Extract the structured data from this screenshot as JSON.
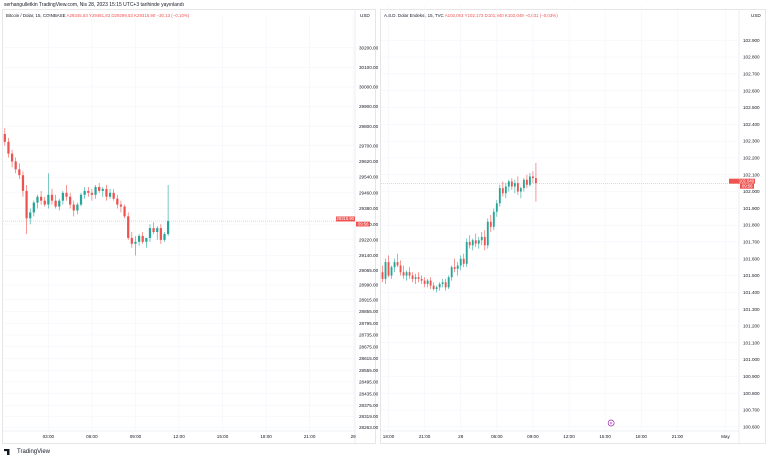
{
  "header": {
    "publisher_line": "serhangulletkin TradingView.com, Nis 28, 2023 15:15 UTC+3 tarihinde yayınlandı"
  },
  "footer": {
    "brand": "TradingView"
  },
  "colors": {
    "up": "#26a69a",
    "down": "#ef5350",
    "grid": "#f0f3fa",
    "axis_text": "#131722"
  },
  "chart_data": [
    {
      "type": "candlestick",
      "panel": "left",
      "legend": {
        "symbol": "Bitcoin / Dolar, 15, COINBASE",
        "ohlc": "A29345,63  Y29481,83  D29299,53  K29315,90  −30,13 (−0,10%)"
      },
      "currency": "USD",
      "ylim": [
        28245,
        30260
      ],
      "yticks": [
        30200,
        30100,
        30000,
        29900,
        29800,
        29700,
        29620,
        29540,
        29460,
        29380,
        29300,
        29220,
        29140,
        29065,
        28990,
        28915,
        28855,
        28795,
        28735,
        28675,
        28615,
        28555,
        28495,
        28435,
        28375,
        28319,
        28263
      ],
      "ytick_labels": [
        "30200.00",
        "30100.00",
        "30000.00",
        "29900.00",
        "29800.00",
        "29700.00",
        "29620.00",
        "29540.00",
        "29460.00",
        "29380.00",
        "29300.00",
        "29220.00",
        "29140.00",
        "29065.00",
        "28990.00",
        "28915.00",
        "28855.00",
        "28795.00",
        "28735.00",
        "28675.00",
        "28615.00",
        "28555.00",
        "28495.00",
        "28435.00",
        "28375.00",
        "28319.00",
        "28263.00"
      ],
      "xtick_labels": [
        "03:00",
        "06:00",
        "09:00",
        "12:00",
        "15:00",
        "18:00",
        "21:00",
        "29"
      ],
      "xtick_pos": [
        12,
        24,
        36,
        48,
        60,
        72,
        84,
        96
      ],
      "x_count": 97,
      "last_price": {
        "value": 29315.9,
        "label": "29315.90",
        "countdown": "09:56"
      },
      "candles": [
        [
          29760,
          29790,
          29700,
          29720
        ],
        [
          29720,
          29740,
          29640,
          29660
        ],
        [
          29660,
          29680,
          29590,
          29620
        ],
        [
          29620,
          29640,
          29560,
          29580
        ],
        [
          29580,
          29610,
          29530,
          29550
        ],
        [
          29550,
          29570,
          29440,
          29470
        ],
        [
          29470,
          29500,
          29250,
          29330
        ],
        [
          29330,
          29380,
          29300,
          29360
        ],
        [
          29360,
          29420,
          29340,
          29410
        ],
        [
          29410,
          29450,
          29380,
          29440
        ],
        [
          29440,
          29470,
          29400,
          29420
        ],
        [
          29420,
          29440,
          29390,
          29400
        ],
        [
          29400,
          29560,
          29380,
          29450
        ],
        [
          29450,
          29480,
          29400,
          29420
        ],
        [
          29420,
          29450,
          29380,
          29390
        ],
        [
          29390,
          29430,
          29370,
          29420
        ],
        [
          29420,
          29470,
          29400,
          29460
        ],
        [
          29460,
          29500,
          29420,
          29440
        ],
        [
          29440,
          29460,
          29380,
          29400
        ],
        [
          29400,
          29420,
          29340,
          29370
        ],
        [
          29370,
          29410,
          29350,
          29400
        ],
        [
          29400,
          29460,
          29390,
          29450
        ],
        [
          29450,
          29490,
          29430,
          29470
        ],
        [
          29470,
          29490,
          29440,
          29460
        ],
        [
          29460,
          29480,
          29420,
          29450
        ],
        [
          29450,
          29500,
          29430,
          29490
        ],
        [
          29490,
          29510,
          29460,
          29470
        ],
        [
          29470,
          29490,
          29440,
          29480
        ],
        [
          29480,
          29500,
          29420,
          29440
        ],
        [
          29440,
          29480,
          29430,
          29460
        ],
        [
          29460,
          29480,
          29420,
          29430
        ],
        [
          29430,
          29450,
          29380,
          29400
        ],
        [
          29400,
          29420,
          29360,
          29390
        ],
        [
          29390,
          29400,
          29330,
          29340
        ],
        [
          29340,
          29360,
          29220,
          29230
        ],
        [
          29230,
          29260,
          29180,
          29200
        ],
        [
          29200,
          29240,
          29140,
          29210
        ],
        [
          29210,
          29250,
          29190,
          29240
        ],
        [
          29240,
          29260,
          29200,
          29210
        ],
        [
          29210,
          29230,
          29180,
          29230
        ],
        [
          29230,
          29300,
          29210,
          29280
        ],
        [
          29280,
          29310,
          29250,
          29260
        ],
        [
          29260,
          29290,
          29220,
          29280
        ],
        [
          29280,
          29300,
          29200,
          29220
        ],
        [
          29220,
          29260,
          29210,
          29250
        ],
        [
          29250,
          29500,
          29240,
          29316
        ]
      ]
    },
    {
      "type": "candlestick",
      "panel": "right",
      "legend": {
        "symbol": "A.B.D. Dolar Endeksi, 15, TVC",
        "ohlc": "A102,083  Y102,173  D101,940  K102,049  −0,031 (−0,03%)"
      },
      "currency": "USD",
      "ylim": [
        100.575,
        102.985
      ],
      "yticks": [
        102.9,
        102.8,
        102.7,
        102.6,
        102.5,
        102.4,
        102.3,
        102.2,
        102.1,
        102.0,
        101.9,
        101.8,
        101.7,
        101.6,
        101.5,
        101.4,
        101.3,
        101.2,
        101.1,
        101.0,
        100.9,
        100.8,
        100.7,
        100.6
      ],
      "ytick_labels": [
        "102.900",
        "102.800",
        "102.700",
        "102.600",
        "102.500",
        "102.400",
        "102.300",
        "102.200",
        "102.100",
        "102.000",
        "101.900",
        "101.800",
        "101.700",
        "101.600",
        "101.500",
        "101.400",
        "101.300",
        "101.200",
        "101.100",
        "101.000",
        "100.900",
        "100.800",
        "100.700",
        "100.600"
      ],
      "xtick_labels": [
        "18:00",
        "21:00",
        "28",
        "06:00",
        "09:00",
        "12:00",
        "15:00",
        "18:00",
        "21:00",
        "May"
      ],
      "xtick_pos": [
        2,
        14,
        26,
        38,
        50,
        62,
        74,
        86,
        98,
        114
      ],
      "x_count": 119,
      "last_price": {
        "value": 102.049,
        "label": "102.049",
        "countdown": "09:56"
      },
      "event_marker": {
        "label": "R",
        "x": 76
      },
      "candles": [
        [
          101.52,
          101.56,
          101.46,
          101.48
        ],
        [
          101.48,
          101.6,
          101.45,
          101.58
        ],
        [
          101.58,
          101.62,
          101.49,
          101.5
        ],
        [
          101.5,
          101.56,
          101.48,
          101.55
        ],
        [
          101.55,
          101.6,
          101.52,
          101.58
        ],
        [
          101.58,
          101.63,
          101.55,
          101.56
        ],
        [
          101.56,
          101.59,
          101.5,
          101.52
        ],
        [
          101.52,
          101.56,
          101.48,
          101.5
        ],
        [
          101.5,
          101.53,
          101.47,
          101.52
        ],
        [
          101.52,
          101.55,
          101.48,
          101.5
        ],
        [
          101.5,
          101.52,
          101.46,
          101.48
        ],
        [
          101.48,
          101.51,
          101.45,
          101.49
        ],
        [
          101.49,
          101.52,
          101.46,
          101.48
        ],
        [
          101.48,
          101.5,
          101.45,
          101.47
        ],
        [
          101.47,
          101.49,
          101.43,
          101.45
        ],
        [
          101.45,
          101.48,
          101.43,
          101.47
        ],
        [
          101.47,
          101.49,
          101.42,
          101.44
        ],
        [
          101.44,
          101.46,
          101.41,
          101.42
        ],
        [
          101.42,
          101.44,
          101.4,
          101.43
        ],
        [
          101.43,
          101.46,
          101.41,
          101.45
        ],
        [
          101.45,
          101.48,
          101.43,
          101.46
        ],
        [
          101.46,
          101.48,
          101.41,
          101.43
        ],
        [
          101.43,
          101.5,
          101.42,
          101.49
        ],
        [
          101.49,
          101.56,
          101.47,
          101.55
        ],
        [
          101.55,
          101.6,
          101.52,
          101.54
        ],
        [
          101.54,
          101.58,
          101.5,
          101.56
        ],
        [
          101.56,
          101.62,
          101.53,
          101.6
        ],
        [
          101.6,
          101.63,
          101.55,
          101.57
        ],
        [
          101.57,
          101.72,
          101.55,
          101.7
        ],
        [
          101.7,
          101.74,
          101.66,
          101.68
        ],
        [
          101.68,
          101.72,
          101.65,
          101.71
        ],
        [
          101.71,
          101.75,
          101.67,
          101.69
        ],
        [
          101.69,
          101.73,
          101.66,
          101.71
        ],
        [
          101.71,
          101.76,
          101.68,
          101.73
        ],
        [
          101.73,
          101.77,
          101.65,
          101.68
        ],
        [
          101.68,
          101.84,
          101.66,
          101.82
        ],
        [
          101.82,
          101.86,
          101.76,
          101.79
        ],
        [
          101.79,
          101.9,
          101.77,
          101.88
        ],
        [
          101.88,
          101.95,
          101.85,
          101.93
        ],
        [
          101.93,
          102.04,
          101.91,
          102.02
        ],
        [
          102.02,
          102.06,
          101.97,
          101.99
        ],
        [
          101.99,
          102.05,
          101.96,
          102.03
        ],
        [
          102.03,
          102.07,
          102.0,
          102.06
        ],
        [
          102.06,
          102.08,
          102.01,
          102.03
        ],
        [
          102.03,
          102.07,
          101.99,
          102.05
        ],
        [
          102.05,
          102.09,
          101.98,
          102.0
        ],
        [
          102.0,
          102.03,
          101.96,
          102.02
        ],
        [
          102.02,
          102.08,
          102.0,
          102.07
        ],
        [
          102.07,
          102.1,
          102.02,
          102.04
        ],
        [
          102.04,
          102.11,
          102.03,
          102.09
        ],
        [
          102.09,
          102.12,
          102.05,
          102.08
        ],
        [
          102.08,
          102.17,
          101.94,
          102.05
        ]
      ]
    }
  ]
}
